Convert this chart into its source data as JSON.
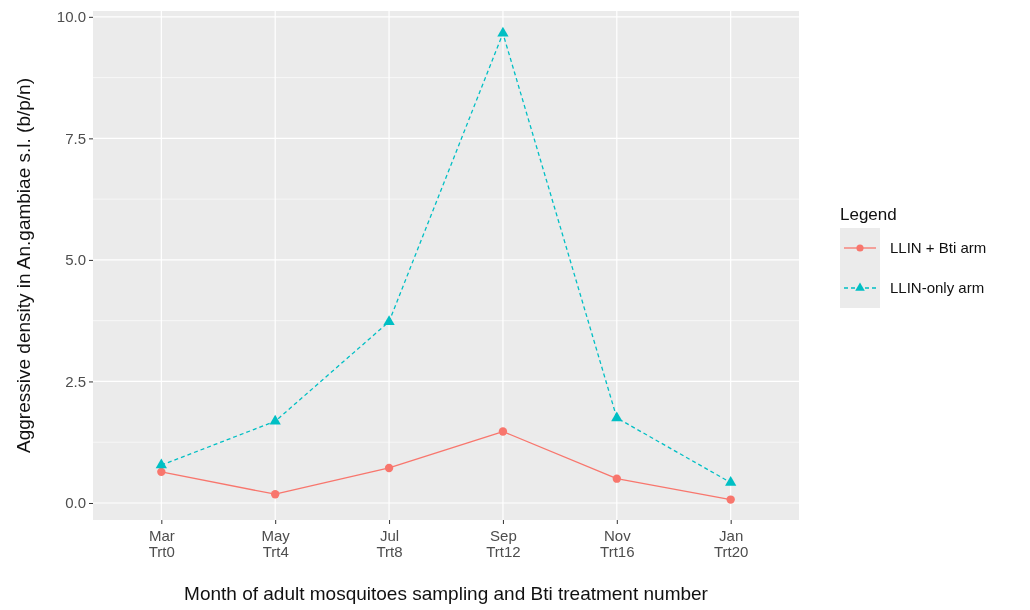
{
  "chart_data": {
    "type": "line",
    "xlabel": "Month of adult mosquitoes sampling and Bti treatment number",
    "ylabel": "Aggressive density in An.gambiae s.l. (b/p/n)",
    "legend_title": "Legend",
    "categories": [
      "Mar\nTrt0",
      "May\nTrt4",
      "Jul\nTrt8",
      "Sep\nTrt12",
      "Nov\nTrt16",
      "Jan\nTrt20"
    ],
    "series": [
      {
        "name": "LLIN + Bti arm",
        "color": "#f8766d",
        "marker": "circle",
        "line_style": "solid",
        "values": [
          0.64,
          0.18,
          0.72,
          1.47,
          0.5,
          0.07
        ]
      },
      {
        "name": "LLIN-only arm",
        "color": "#00bfc4",
        "marker": "triangle",
        "line_style": "dashed",
        "values": [
          0.78,
          1.68,
          3.73,
          9.66,
          1.75,
          0.42
        ]
      }
    ],
    "ylim": [
      -0.35,
      10.12
    ],
    "yticks": [
      {
        "value": 0,
        "label": "0.0"
      },
      {
        "value": 2.5,
        "label": "2.5"
      },
      {
        "value": 5,
        "label": "5.0"
      },
      {
        "value": 7.5,
        "label": "7.5"
      },
      {
        "value": 10,
        "label": "10.0"
      }
    ],
    "grid": true,
    "legend": "right"
  }
}
